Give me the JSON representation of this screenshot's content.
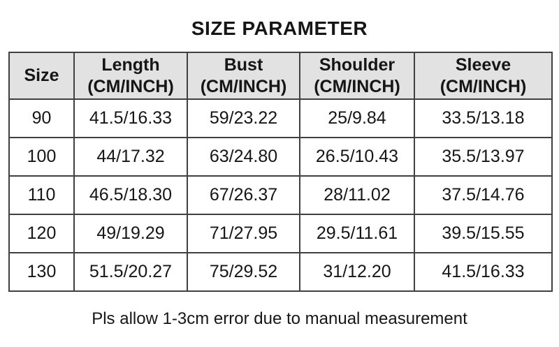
{
  "title": "SIZE PARAMETER",
  "table": {
    "columns": [
      {
        "label": "Size",
        "unit": ""
      },
      {
        "label": "Length",
        "unit": "(CM/INCH)"
      },
      {
        "label": "Bust",
        "unit": "(CM/INCH)"
      },
      {
        "label": "Shoulder",
        "unit": "(CM/INCH)"
      },
      {
        "label": "Sleeve",
        "unit": "(CM/INCH)"
      }
    ],
    "rows": [
      [
        "90",
        "41.5/16.33",
        "59/23.22",
        "25/9.84",
        "33.5/13.18"
      ],
      [
        "100",
        "44/17.32",
        "63/24.80",
        "26.5/10.43",
        "35.5/13.97"
      ],
      [
        "110",
        "46.5/18.30",
        "67/26.37",
        "28/11.02",
        "37.5/14.76"
      ],
      [
        "120",
        "49/19.29",
        "71/27.95",
        "29.5/11.61",
        "39.5/15.55"
      ],
      [
        "130",
        "51.5/20.27",
        "75/29.52",
        "31/12.20",
        "41.5/16.33"
      ]
    ]
  },
  "footer_note": "Pls allow 1-3cm error due to manual measurement",
  "colors": {
    "background": "#ffffff",
    "header_bg": "#e2e2e2",
    "border": "#404040",
    "text": "#161616"
  }
}
